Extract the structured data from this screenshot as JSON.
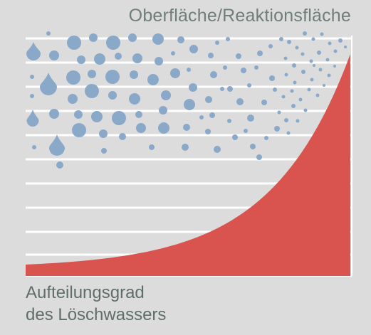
{
  "texts": {
    "top_label": "Oberfläche/Reaktionsfläche",
    "bottom_label_line1": "Aufteilungsgrad",
    "bottom_label_line2": "des Löschwassers"
  },
  "colors": {
    "background": "#dcdcdc",
    "stripe": "#ffffff",
    "curve_fill": "#d9534f",
    "drop": "#8aa9c9",
    "text": "#6f7f78"
  },
  "icons": [
    "water-drop-icon",
    "water-droplet-dot"
  ]
}
